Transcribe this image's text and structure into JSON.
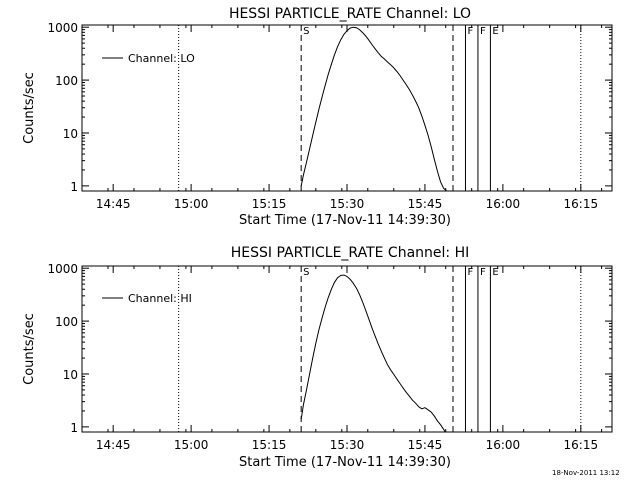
{
  "chart_data": [
    {
      "type": "line",
      "title": "HESSI PARTICLE_RATE Channel: LO",
      "xlabel": "Start Time (17-Nov-11 14:39:30)",
      "ylabel": "Counts/sec",
      "xlim": [
        14.65,
        16.35
      ],
      "ylim_log": [
        0.8,
        1100
      ],
      "yscale": "log",
      "xticks": [
        14.75,
        15.0,
        15.25,
        15.5,
        15.75,
        16.0,
        16.25
      ],
      "xtick_labels": [
        "14:45",
        "15:00",
        "15:15",
        "15:30",
        "15:45",
        "16:00",
        "16:15"
      ],
      "yticks": [
        1,
        10,
        100,
        1000
      ],
      "ytick_labels": [
        "1",
        "10",
        "100",
        "1000"
      ],
      "legend": "Channel: LO",
      "dotted_lines": [
        14.96,
        16.25
      ],
      "dashed_lines": [
        15.353,
        15.84
      ],
      "solid_lines": [
        15.88,
        15.92,
        15.96
      ],
      "markers": [
        {
          "label": "S",
          "x": 15.353
        },
        {
          "label": "F",
          "x": 15.88
        },
        {
          "label": "F",
          "x": 15.92
        },
        {
          "label": "E",
          "x": 15.96
        }
      ],
      "series": [
        {
          "name": "Channel: LO",
          "x": [
            15.353,
            15.36,
            15.37,
            15.38,
            15.39,
            15.4,
            15.41,
            15.42,
            15.43,
            15.44,
            15.45,
            15.46,
            15.47,
            15.48,
            15.49,
            15.5,
            15.51,
            15.52,
            15.53,
            15.54,
            15.55,
            15.56,
            15.57,
            15.58,
            15.59,
            15.6,
            15.61,
            15.62,
            15.63,
            15.64,
            15.65,
            15.66,
            15.67,
            15.68,
            15.69,
            15.7,
            15.71,
            15.72,
            15.73,
            15.74,
            15.75,
            15.76,
            15.77,
            15.78,
            15.79,
            15.8,
            15.81,
            15.82,
            15.825,
            15.83
          ],
          "values": [
            1,
            1.6,
            2.8,
            5,
            9,
            16,
            28,
            48,
            80,
            130,
            200,
            300,
            430,
            580,
            730,
            860,
            960,
            1000,
            980,
            900,
            790,
            680,
            570,
            470,
            390,
            330,
            280,
            250,
            220,
            195,
            170,
            145,
            122,
            100,
            82,
            66,
            52,
            40,
            30,
            21,
            14,
            9,
            5.5,
            3.2,
            1.9,
            1.2,
            0.9,
            0.8,
            0.8,
            0.8
          ]
        }
      ]
    },
    {
      "type": "line",
      "title": "HESSI PARTICLE_RATE Channel: HI",
      "xlabel": "Start Time (17-Nov-11 14:39:30)",
      "ylabel": "Counts/sec",
      "xlim": [
        14.65,
        16.35
      ],
      "ylim_log": [
        0.8,
        1100
      ],
      "yscale": "log",
      "xticks": [
        14.75,
        15.0,
        15.25,
        15.5,
        15.75,
        16.0,
        16.25
      ],
      "xtick_labels": [
        "14:45",
        "15:00",
        "15:15",
        "15:30",
        "15:45",
        "16:00",
        "16:15"
      ],
      "yticks": [
        1,
        10,
        100,
        1000
      ],
      "ytick_labels": [
        "1",
        "10",
        "100",
        "1000"
      ],
      "legend": "Channel: HI",
      "dotted_lines": [
        14.96,
        16.25
      ],
      "dashed_lines": [
        15.353,
        15.84
      ],
      "solid_lines": [
        15.88,
        15.92,
        15.96
      ],
      "markers": [
        {
          "label": "S",
          "x": 15.353
        },
        {
          "label": "F",
          "x": 15.88
        },
        {
          "label": "F",
          "x": 15.92
        },
        {
          "label": "E",
          "x": 15.96
        }
      ],
      "series": [
        {
          "name": "Channel: HI",
          "x": [
            15.353,
            15.36,
            15.37,
            15.38,
            15.39,
            15.4,
            15.41,
            15.42,
            15.43,
            15.44,
            15.45,
            15.46,
            15.47,
            15.48,
            15.49,
            15.5,
            15.51,
            15.52,
            15.53,
            15.54,
            15.55,
            15.56,
            15.57,
            15.58,
            15.59,
            15.6,
            15.61,
            15.62,
            15.63,
            15.64,
            15.65,
            15.66,
            15.67,
            15.68,
            15.69,
            15.7,
            15.71,
            15.72,
            15.73,
            15.74,
            15.75,
            15.76,
            15.77,
            15.78,
            15.79,
            15.8,
            15.81,
            15.815
          ],
          "values": [
            1.4,
            2.6,
            5,
            10,
            20,
            38,
            68,
            115,
            185,
            280,
            400,
            540,
            660,
            730,
            740,
            700,
            620,
            520,
            420,
            320,
            230,
            160,
            110,
            75,
            52,
            37,
            27,
            20,
            15,
            12,
            9.8,
            8,
            6.6,
            5.4,
            4.5,
            3.8,
            3.2,
            2.8,
            2.4,
            2.2,
            2.3,
            2.1,
            1.9,
            1.6,
            1.3,
            1.1,
            0.9,
            0.8
          ]
        }
      ]
    }
  ],
  "footer": {
    "stamp": "18-Nov-2011 13:12"
  }
}
